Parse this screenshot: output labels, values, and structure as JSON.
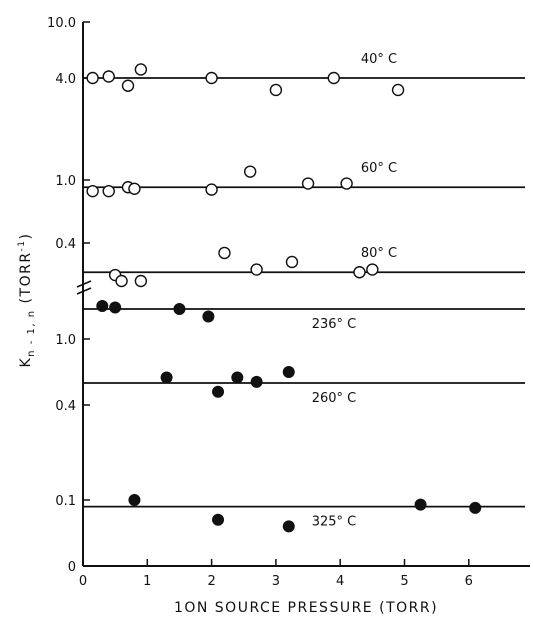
{
  "chart_data": {
    "type": "scatter",
    "xlabel": "1ON SOURCE PRESSURE (TORR)",
    "ylabel_main": "K",
    "ylabel_sub": "n - 1, n",
    "ylabel_unit_open": "(TORR",
    "ylabel_unit_exp": "-1",
    "ylabel_unit_close": ")",
    "xlim": [
      0,
      7
    ],
    "x_ticks": [
      "0",
      "1",
      "2",
      "3",
      "4",
      "5",
      "6"
    ],
    "upper_panel": {
      "ylim_note": "log-type stretched scale",
      "y_ticks": [
        "10.0",
        "4.0",
        "1.0",
        "0.4"
      ]
    },
    "lower_panel": {
      "y_ticks": [
        "1.0",
        "0.4",
        "0.1",
        "0"
      ]
    },
    "series": [
      {
        "name": "40° C",
        "marker": "open",
        "level": 4.0,
        "x": [
          0.15,
          0.4,
          0.7,
          0.9,
          2.0,
          3.0,
          3.9,
          4.9
        ],
        "y": [
          4.0,
          4.1,
          3.6,
          4.6,
          4.0,
          3.4,
          4.0,
          3.4
        ]
      },
      {
        "name": "60° C",
        "marker": "open",
        "level": 0.9,
        "x": [
          0.15,
          0.4,
          0.7,
          0.8,
          2.0,
          2.6,
          3.5,
          4.1
        ],
        "y": [
          0.85,
          0.85,
          0.9,
          0.88,
          0.87,
          1.12,
          0.95,
          0.95
        ]
      },
      {
        "name": "80° C",
        "marker": "open",
        "level": 0.27,
        "x": [
          0.5,
          0.6,
          0.9,
          2.2,
          2.7,
          3.25,
          4.3,
          4.5
        ],
        "y": [
          0.26,
          0.24,
          0.24,
          0.35,
          0.28,
          0.31,
          0.27,
          0.28
        ]
      },
      {
        "name": "236° C",
        "marker": "filled",
        "level": 1.2,
        "x": [
          0.3,
          0.5,
          1.5,
          1.95
        ],
        "y": [
          1.22,
          1.21,
          1.2,
          1.15
        ]
      },
      {
        "name": "260° C",
        "marker": "filled",
        "level": 0.6,
        "x": [
          1.3,
          2.1,
          2.4,
          2.7,
          3.2
        ],
        "y": [
          0.65,
          0.52,
          0.65,
          0.61,
          0.7
        ]
      },
      {
        "name": "325° C",
        "marker": "filled",
        "level": 0.09,
        "x": [
          0.8,
          2.1,
          3.2,
          5.25,
          6.1
        ],
        "y": [
          0.1,
          0.07,
          0.06,
          0.093,
          0.088
        ]
      }
    ]
  }
}
